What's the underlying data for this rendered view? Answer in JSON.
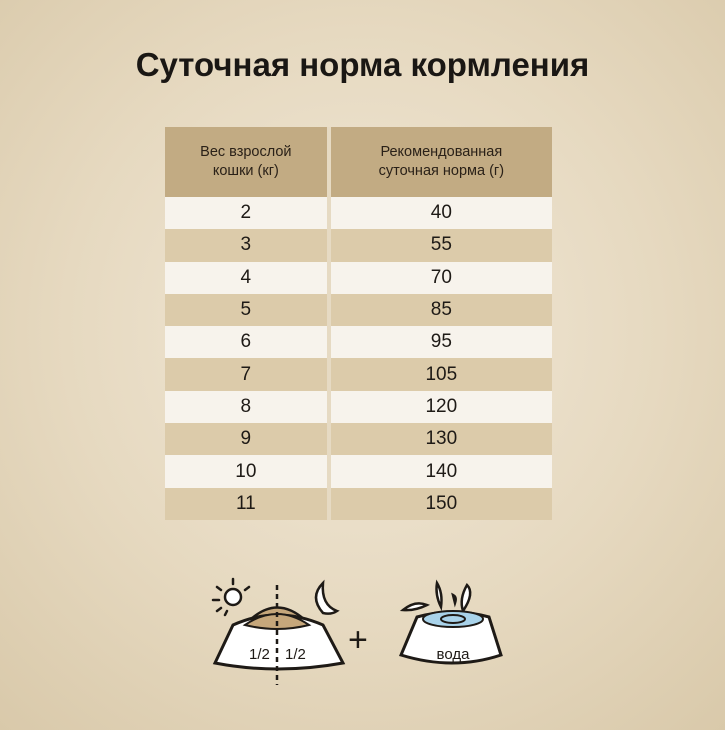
{
  "title": "Суточная норма кормления",
  "table": {
    "headers": [
      "Вес взрослой\nкошки (кг)",
      "Рекомендованная\nсуточная норма (г)"
    ],
    "rows": [
      [
        "2",
        "40"
      ],
      [
        "3",
        "55"
      ],
      [
        "4",
        "70"
      ],
      [
        "5",
        "85"
      ],
      [
        "6",
        "95"
      ],
      [
        "7",
        "105"
      ],
      [
        "8",
        "120"
      ],
      [
        "9",
        "130"
      ],
      [
        "10",
        "140"
      ],
      [
        "11",
        "150"
      ]
    ]
  },
  "feeding": {
    "morning_portion": "1/2",
    "evening_portion": "1/2",
    "plus": "+",
    "water_label": "вода",
    "icons": [
      "sun-icon",
      "moon-icon",
      "food-bowl-icon",
      "water-bowl-icon"
    ]
  },
  "colors": {
    "header": "#c2ab83",
    "row_light": "#f7f3ec",
    "row_dark": "#dccbaa",
    "food": "#c6a77b",
    "water": "#a9d3ea"
  }
}
